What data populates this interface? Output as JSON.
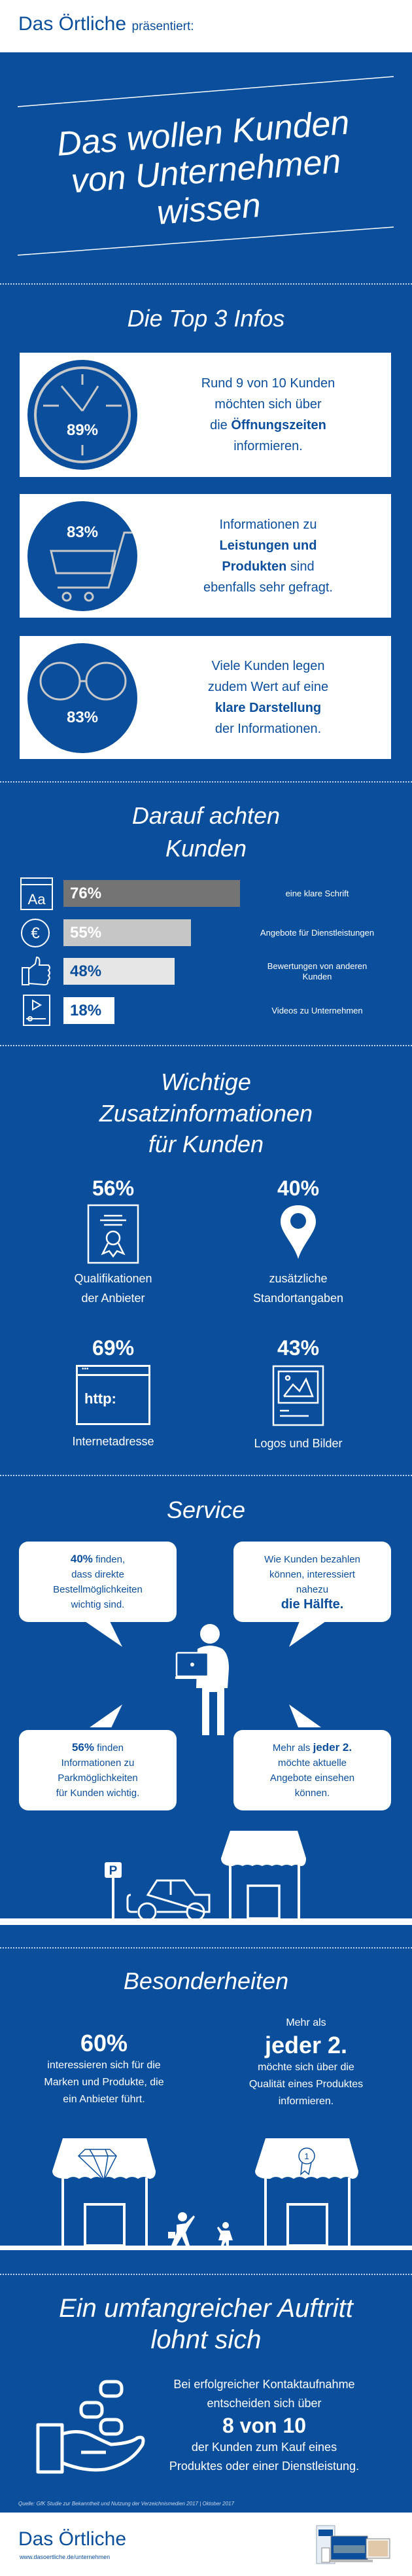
{
  "header": {
    "brand": "Das Örtliche",
    "tagline": "präsentiert:"
  },
  "title": {
    "lines": [
      "Das wollen Kunden",
      "von Unternehmen",
      "wissen"
    ]
  },
  "colors": {
    "brand_blue": "#0b4f9c",
    "bar_76": "#747474",
    "bar_55": "#c6c6c6",
    "bar_48": "#e6e6e6",
    "bar_18": "#ffffff",
    "clock_ring": "#c8c8c8"
  },
  "top3": {
    "heading": "Die Top 3 Infos",
    "items": [
      {
        "icon": "clock-icon",
        "percent": "89%",
        "l1": "Rund 9 von 10 Kunden",
        "l2": "möchten sich über",
        "l3a": "die ",
        "l3b": "Öffnungszeiten",
        "l4": "informieren."
      },
      {
        "icon": "shopping-cart-icon",
        "percent": "83%",
        "l1": "Informationen zu",
        "l2": "Leistungen und",
        "l3a": "Produkten",
        "l3b": " sind",
        "l4": "ebenfalls sehr gefragt."
      },
      {
        "icon": "glasses-icon",
        "percent": "83%",
        "l1": "Viele Kunden legen",
        "l2": "zudem Wert auf eine",
        "l3": "klare Darstellung",
        "l4": "der Informationen."
      }
    ]
  },
  "attention": {
    "heading": [
      "Darauf achten",
      "Kunden"
    ],
    "chart_data": {
      "type": "bar",
      "orientation": "horizontal",
      "categories": [
        "eine klare Schrift",
        "Angebote für Dienstleistungen",
        "Bewertungen von anderen Kunden",
        "Videos zu Unternehmen"
      ],
      "values": [
        76,
        55,
        48,
        18
      ],
      "value_labels": [
        "76%",
        "55%",
        "48%",
        "18%"
      ],
      "icons": [
        "font-icon",
        "euro-icon",
        "thumbs-up-icon",
        "video-icon"
      ]
    }
  },
  "extra": {
    "heading": [
      "Wichtige",
      "Zusatzinformationen",
      "für Kunden"
    ],
    "items": [
      {
        "percent": "56%",
        "icon": "certificate-icon",
        "l1": "Qualifikationen",
        "l2": "der Anbieter"
      },
      {
        "percent": "40%",
        "icon": "location-pin-icon",
        "l1": "zusätzliche",
        "l2": "Standortangaben"
      },
      {
        "percent": "69%",
        "icon": "browser-icon",
        "icon_text": "http:",
        "l1": "Internetadresse"
      },
      {
        "percent": "43%",
        "icon": "image-icon",
        "l1": "Logos und Bilder"
      }
    ]
  },
  "service": {
    "heading": "Service",
    "tl": {
      "b": "40%",
      "t1": " finden,",
      "l2": "dass direkte",
      "l3": "Bestellmöglichkeiten",
      "l4": "wichtig sind."
    },
    "tr": {
      "l1": "Wie Kunden bezahlen",
      "l2": "können, interessiert",
      "l3": "nahezu",
      "b": "die Hälfte."
    },
    "bl": {
      "b": "56%",
      "t1": " finden",
      "l2": "Informationen zu",
      "l3": "Parkmöglichkeiten",
      "l4": "für Kunden wichtig."
    },
    "br": {
      "t1": "Mehr als ",
      "b": "jeder 2.",
      "l2": "möchte aktuelle",
      "l3": "Angebote einsehen",
      "l4": "können."
    },
    "parking_sign": "P"
  },
  "special": {
    "heading": "Besonderheiten",
    "left": {
      "big": "60%",
      "l1": "interessieren sich für die",
      "l2": "Marken und Produkte, die",
      "l3": "ein Anbieter führt."
    },
    "right": {
      "pre": "Mehr als",
      "big": "jeder 2.",
      "l1": "möchte sich über die",
      "l2": "Qualität eines Produktes",
      "l3": "informieren."
    },
    "badge_number": "1"
  },
  "presence": {
    "heading": [
      "Ein umfangreicher Auftritt",
      "lohnt sich"
    ],
    "l1": "Bei erfolgreicher Kontaktaufnahme",
    "l2": "entscheiden sich über",
    "big": "8 von 10",
    "l3": "der Kunden zum Kauf eines",
    "l4": "Produktes oder einer Dienstleistung."
  },
  "source": "Quelle: GfK Studie zur Bekanntheit und Nutzung der Verzeichnismedien 2017 | Oktober 2017",
  "footer": {
    "brand": "Das Örtliche",
    "url": "www.dasoertliche.de/unternehmen"
  }
}
